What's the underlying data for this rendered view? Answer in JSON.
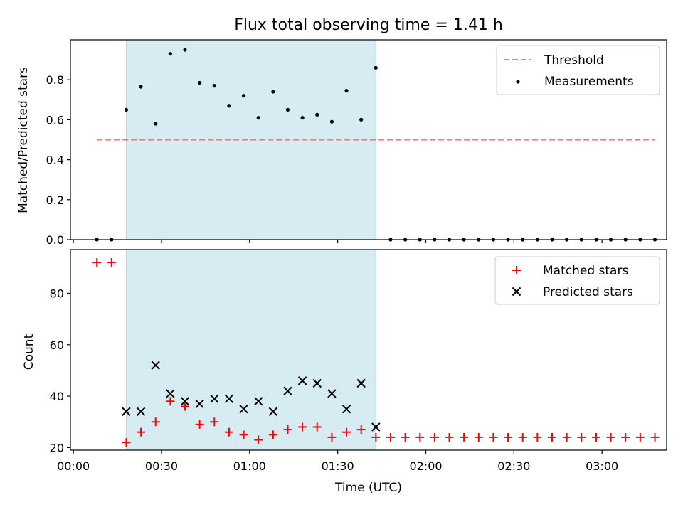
{
  "chart_data": [
    {
      "type": "scatter",
      "title": "Flux total observing time = 1.41 h",
      "ylabel": "Matched/Predicted stars",
      "xlabel": "",
      "xlim": [
        "23:59",
        "03:22"
      ],
      "ylim": [
        0,
        1.0
      ],
      "yticks": [
        0.0,
        0.2,
        0.4,
        0.6,
        0.8
      ],
      "ytick_labels": [
        "0.0",
        "0.2",
        "0.4",
        "0.6",
        "0.8"
      ],
      "grid": false,
      "legend_position": "upper right",
      "shaded_interval": [
        "00:18",
        "01:43"
      ],
      "threshold": {
        "name": "Threshold",
        "value": 0.5,
        "x_range": [
          "00:08",
          "03:18"
        ],
        "color": "#ff7070",
        "style": "dashed"
      },
      "series": [
        {
          "name": "Measurements",
          "marker": "dot",
          "color": "#000000",
          "x": [
            "00:08",
            "00:13",
            "00:18",
            "00:23",
            "00:28",
            "00:33",
            "00:38",
            "00:43",
            "00:48",
            "00:53",
            "00:58",
            "01:03",
            "01:08",
            "01:13",
            "01:18",
            "01:23",
            "01:28",
            "01:33",
            "01:38",
            "01:43",
            "01:48",
            "01:53",
            "01:58",
            "02:03",
            "02:08",
            "02:13",
            "02:18",
            "02:23",
            "02:28",
            "02:33",
            "02:38",
            "02:43",
            "02:48",
            "02:53",
            "02:58",
            "03:03",
            "03:08",
            "03:13",
            "03:18"
          ],
          "y": [
            0,
            0,
            0.65,
            0.765,
            0.58,
            0.93,
            0.95,
            0.785,
            0.77,
            0.67,
            0.72,
            0.61,
            0.74,
            0.65,
            0.61,
            0.625,
            0.59,
            0.745,
            0.6,
            0.86,
            0,
            0,
            0,
            0,
            0,
            0,
            0,
            0,
            0,
            0,
            0,
            0,
            0,
            0,
            0,
            0,
            0,
            0,
            0
          ]
        }
      ]
    },
    {
      "type": "scatter",
      "title": "",
      "xlabel": "Time (UTC)",
      "ylabel": "Count",
      "xlim": [
        "23:59",
        "03:22"
      ],
      "ylim": [
        19,
        97
      ],
      "yticks": [
        20,
        40,
        60,
        80
      ],
      "ytick_labels": [
        "20",
        "40",
        "60",
        "80"
      ],
      "xticks": [
        "00:00",
        "00:30",
        "01:00",
        "01:30",
        "02:00",
        "02:30",
        "03:00"
      ],
      "grid": false,
      "legend_position": "upper right",
      "shaded_interval": [
        "00:18",
        "01:43"
      ],
      "series": [
        {
          "name": "Matched stars",
          "marker": "plus",
          "color": "#ff0000",
          "x": [
            "00:08",
            "00:13",
            "00:18",
            "00:23",
            "00:28",
            "00:33",
            "00:38",
            "00:43",
            "00:48",
            "00:53",
            "00:58",
            "01:03",
            "01:08",
            "01:13",
            "01:18",
            "01:23",
            "01:28",
            "01:33",
            "01:38",
            "01:43",
            "01:48",
            "01:53",
            "01:58",
            "02:03",
            "02:08",
            "02:13",
            "02:18",
            "02:23",
            "02:28",
            "02:33",
            "02:38",
            "02:43",
            "02:48",
            "02:53",
            "02:58",
            "03:03",
            "03:08",
            "03:13",
            "03:18"
          ],
          "y": [
            92,
            92,
            22,
            26,
            30,
            38,
            36,
            29,
            30,
            26,
            25,
            23,
            25,
            27,
            28,
            28,
            24,
            26,
            27,
            24,
            24,
            24,
            24,
            24,
            24,
            24,
            24,
            24,
            24,
            24,
            24,
            24,
            24,
            24,
            24,
            24,
            24,
            24,
            24
          ]
        },
        {
          "name": "Predicted stars",
          "marker": "x",
          "color": "#000000",
          "x": [
            "00:18",
            "00:23",
            "00:28",
            "00:33",
            "00:38",
            "00:43",
            "00:48",
            "00:53",
            "00:58",
            "01:03",
            "01:08",
            "01:13",
            "01:18",
            "01:23",
            "01:28",
            "01:33",
            "01:38",
            "01:43"
          ],
          "y": [
            34,
            34,
            52,
            41,
            38,
            37,
            39,
            39,
            35,
            38,
            34,
            42,
            46,
            45,
            41,
            35,
            45,
            28
          ]
        }
      ]
    }
  ],
  "colors": {
    "shade": "#add8e6",
    "shade_opacity": 0.5,
    "matched": "#ff0000",
    "predicted": "#000000",
    "threshold": "#ff7070"
  }
}
